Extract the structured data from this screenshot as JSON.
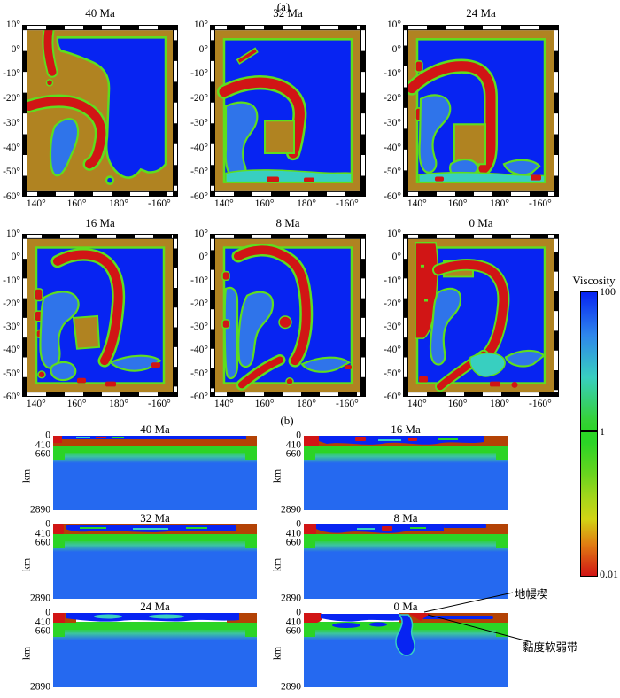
{
  "figure": {
    "panel_a_label": "(a)",
    "panel_b_label": "(b)"
  },
  "colorbar": {
    "title": "Viscosity",
    "ticks": [
      "100",
      "1",
      "0.01"
    ]
  },
  "maps": {
    "y_ticks": [
      "10°",
      "0°",
      "-10°",
      "-20°",
      "-30°",
      "-40°",
      "-50°",
      "-60°"
    ],
    "x_ticks": [
      "140°",
      "160°",
      "180°",
      "-160°"
    ],
    "panels": [
      {
        "title": "40 Ma"
      },
      {
        "title": "32 Ma"
      },
      {
        "title": "24 Ma"
      },
      {
        "title": "16 Ma"
      },
      {
        "title": "8 Ma"
      },
      {
        "title": "0 Ma"
      }
    ]
  },
  "sections": {
    "axis_label": "km",
    "depth_ticks": [
      "0",
      "410",
      "660",
      "2890"
    ],
    "panels": [
      {
        "title": "40 Ma"
      },
      {
        "title": "16 Ma"
      },
      {
        "title": "32 Ma"
      },
      {
        "title": "8 Ma"
      },
      {
        "title": "24 Ma"
      },
      {
        "title": "0 Ma"
      }
    ]
  },
  "annotations": {
    "mantle_wedge": "地幔楔",
    "weak_zone": "黏度软弱带"
  },
  "palette": {
    "deepBlue": "#0724f2",
    "mantleBlue": "#2569f0",
    "basinBlue": "#2f74ea",
    "green": "#2bd426",
    "lime": "#5ede1e",
    "cyan": "#38cfc0",
    "tan": "#b08321",
    "rust": "#b34205",
    "red": "#d11515",
    "yellow": "#d2d414",
    "orange": "#e07c12"
  }
}
